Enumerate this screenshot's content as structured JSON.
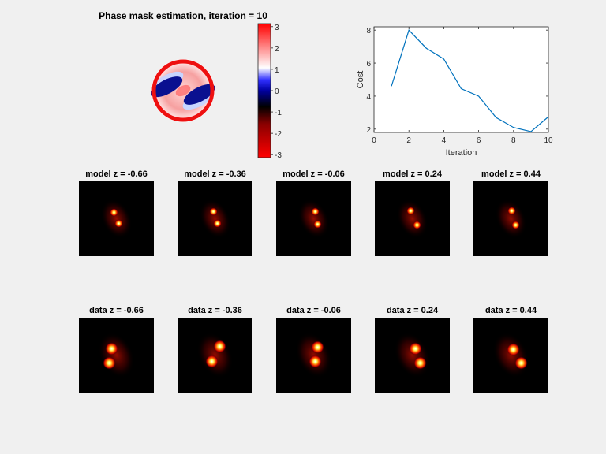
{
  "figure": {
    "background": "#f0f0f0"
  },
  "phase_panel": {
    "title": "Phase mask estimation, iteration = 10",
    "colorbar_ticks": [
      3,
      2,
      1,
      0,
      -1,
      -2,
      -3
    ],
    "colorbar_range": [
      -3.14,
      3.14
    ]
  },
  "chart_data": [
    {
      "type": "line",
      "title": "",
      "xlabel": "Iteration",
      "ylabel": "Cost",
      "xlim": [
        0,
        10
      ],
      "ylim": [
        1.8,
        8.2
      ],
      "xticks": [
        0,
        2,
        4,
        6,
        8,
        10
      ],
      "yticks": [
        2,
        4,
        6,
        8
      ],
      "grid": false,
      "series": [
        {
          "color": "#0072bd",
          "x": [
            1,
            2,
            3,
            4,
            5,
            6,
            7,
            8,
            9,
            10
          ],
          "y": [
            4.6,
            8.0,
            6.9,
            6.25,
            4.45,
            4.0,
            2.7,
            2.1,
            1.85,
            2.75
          ]
        }
      ]
    },
    {
      "type": "heatmap",
      "colormap": "hot",
      "rows": [
        {
          "role": "model",
          "panels": [
            {
              "title": "model z = -0.66"
            },
            {
              "title": "model z = -0.36"
            },
            {
              "title": "model z = -0.06"
            },
            {
              "title": "model z = 0.24"
            },
            {
              "title": "model z = 0.44"
            }
          ]
        },
        {
          "role": "data",
          "panels": [
            {
              "title": "data z = -0.66"
            },
            {
              "title": "data z = -0.36"
            },
            {
              "title": "data z = -0.06"
            },
            {
              "title": "data z = 0.24"
            },
            {
              "title": "data z = 0.44"
            }
          ]
        }
      ]
    }
  ]
}
